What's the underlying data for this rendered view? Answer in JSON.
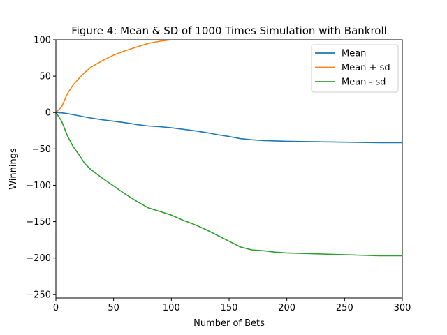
{
  "chart_data": {
    "type": "line",
    "title": "Figure 4: Mean & SD of 1000 Times Simulation with Bankroll",
    "xlabel": "Number of Bets",
    "ylabel": "Winnings",
    "xlim": [
      0,
      300
    ],
    "ylim": [
      -255,
      100
    ],
    "xticks": [
      0,
      50,
      100,
      150,
      200,
      250,
      300
    ],
    "yticks": [
      -250,
      -200,
      -150,
      -100,
      -50,
      0,
      50,
      100
    ],
    "grid": false,
    "legend_position": "top-right",
    "x": [
      0,
      5,
      10,
      15,
      20,
      25,
      30,
      40,
      50,
      60,
      70,
      80,
      90,
      100,
      110,
      120,
      130,
      140,
      150,
      160,
      170,
      180,
      190,
      200,
      220,
      240,
      260,
      280,
      300
    ],
    "series": [
      {
        "name": "Mean",
        "color": "#1f77b4",
        "values": [
          0,
          -0.5,
          -1.5,
          -3,
          -4.5,
          -6,
          -7.5,
          -10,
          -12,
          -14,
          -16.5,
          -18.5,
          -19.5,
          -21,
          -23,
          -25,
          -27.5,
          -30.5,
          -33,
          -36,
          -37.5,
          -38.5,
          -39,
          -39.5,
          -40,
          -40.5,
          -41,
          -41.5,
          -41.5
        ]
      },
      {
        "name": "Mean + sd",
        "color": "#ff7f0e",
        "values": [
          0,
          8,
          26,
          38,
          47,
          55,
          62,
          71,
          79,
          85,
          90,
          95,
          98,
          100,
          null,
          null,
          null,
          null,
          null,
          null,
          null,
          null,
          null,
          null,
          null,
          null,
          null,
          null,
          null
        ]
      },
      {
        "name": "Mean - sd",
        "color": "#2ca02c",
        "values": [
          0,
          -12,
          -32,
          -47,
          -58,
          -70,
          -78,
          -90,
          -101,
          -112,
          -122,
          -131,
          -136,
          -141,
          -148,
          -154,
          -161,
          -169,
          -177,
          -185,
          -189,
          -190,
          -192,
          -193,
          -194,
          -195,
          -196,
          -197,
          -197
        ]
      }
    ]
  }
}
